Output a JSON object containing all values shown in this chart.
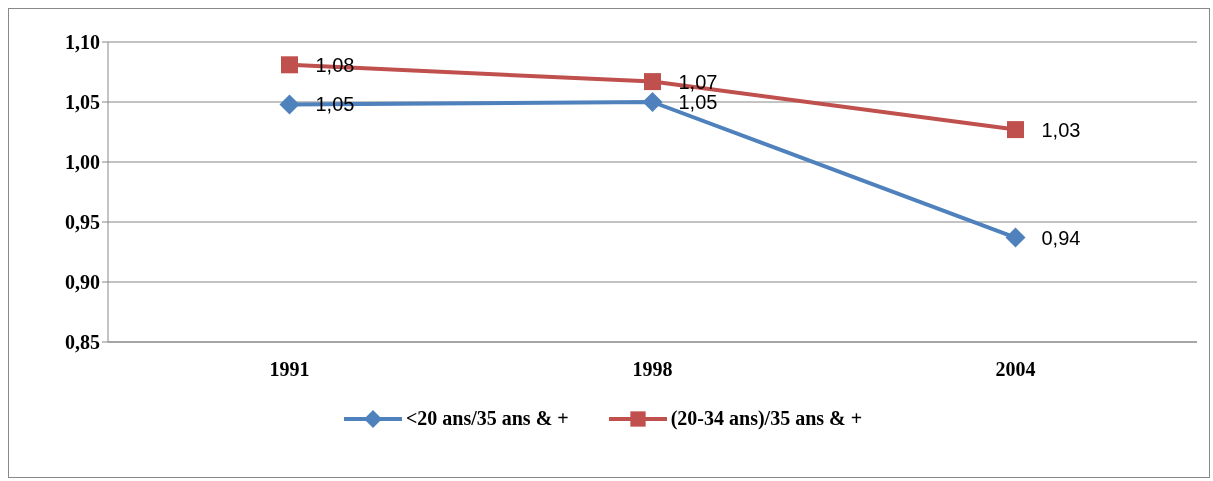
{
  "chart_data": {
    "type": "line",
    "categories": [
      "1991",
      "1998",
      "2004"
    ],
    "series": [
      {
        "name": "<20 ans/35 ans & +",
        "color": "#4f81bd",
        "marker": "diamond",
        "values": [
          1.048,
          1.05,
          0.937
        ],
        "value_labels": [
          "1,05",
          "1,05",
          "0,94"
        ]
      },
      {
        "name": "(20-34 ans)/35 ans & +",
        "color": "#c0504d",
        "marker": "square",
        "values": [
          1.081,
          1.067,
          1.027
        ],
        "value_labels": [
          "1,08",
          "1,07",
          "1,03"
        ]
      }
    ],
    "ylim": [
      0.85,
      1.1
    ],
    "yticks": [
      {
        "value": 0.85,
        "label": "0,85"
      },
      {
        "value": 0.9,
        "label": "0,90"
      },
      {
        "value": 0.95,
        "label": "0,95"
      },
      {
        "value": 1.0,
        "label": "1,00"
      },
      {
        "value": 1.05,
        "label": "1,05"
      },
      {
        "value": 1.1,
        "label": "1,10"
      }
    ],
    "grid": "y",
    "legend": "bottom",
    "line_style": "solid"
  }
}
